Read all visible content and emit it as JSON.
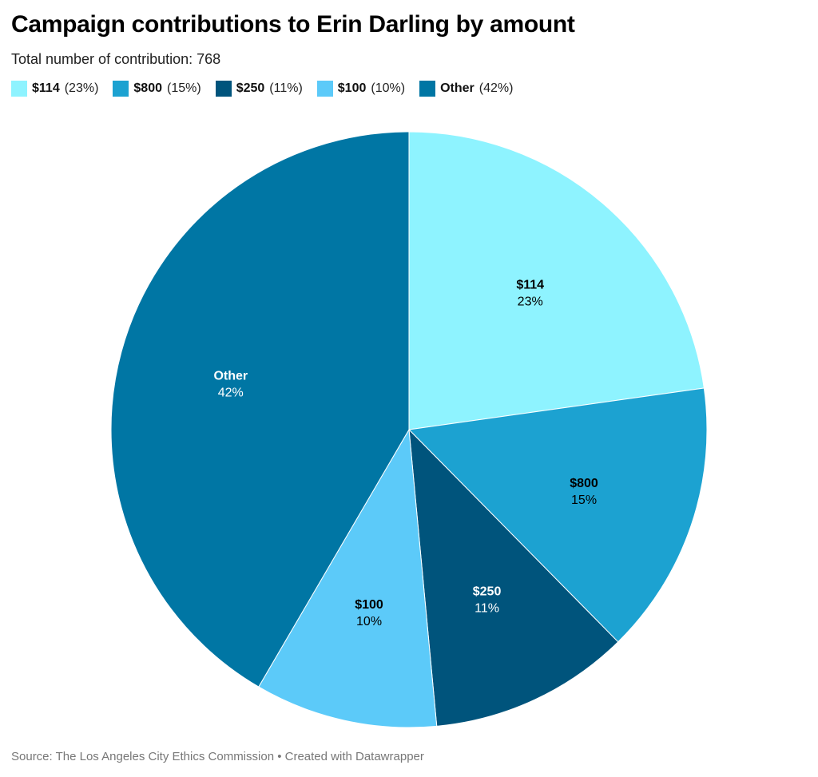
{
  "title": "Campaign contributions to Erin Darling by amount",
  "subtitle": "Total number of contribution: 768",
  "source": "Source: The Los Angeles City Ethics Commission • Created with Datawrapper",
  "chart_data": {
    "type": "pie",
    "title": "Campaign contributions to Erin Darling by amount",
    "legend_position": "top-left",
    "slices": [
      {
        "label": "$114",
        "value": 23,
        "pct_text": "23%",
        "legend_pct": "(23%)",
        "color": "#8ef3ff",
        "text_color": "#000000"
      },
      {
        "label": "$800",
        "value": 15,
        "pct_text": "15%",
        "legend_pct": "(15%)",
        "color": "#1ca2d1",
        "text_color": "#000000"
      },
      {
        "label": "$250",
        "value": 11,
        "pct_text": "11%",
        "legend_pct": "(11%)",
        "color": "#00547c",
        "text_color": "#ffffff"
      },
      {
        "label": "$100",
        "value": 10,
        "pct_text": "10%",
        "legend_pct": "(10%)",
        "color": "#5ccaf9",
        "text_color": "#000000"
      },
      {
        "label": "Other",
        "value": 42,
        "pct_text": "42%",
        "legend_pct": "(42%)",
        "color": "#0076a4",
        "text_color": "#ffffff"
      }
    ]
  }
}
